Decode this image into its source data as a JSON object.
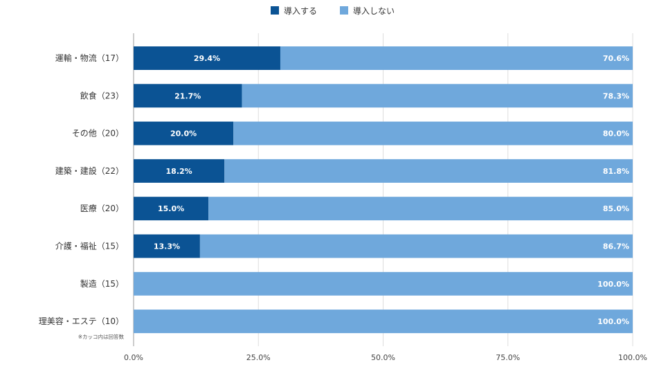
{
  "chart_data": {
    "type": "bar",
    "orientation": "horizontal",
    "stacked": true,
    "categories": [
      "運輸・物流（17）",
      "飲食（23）",
      "その他（20）",
      "建築・建設（22）",
      "医療（20）",
      "介護・福祉（15）",
      "製造（15）",
      "理美容・エステ（10）"
    ],
    "series": [
      {
        "name": "導入する",
        "color": "#0b5394",
        "values": [
          29.4,
          21.7,
          20.0,
          18.2,
          15.0,
          13.3,
          0,
          0
        ],
        "labels": [
          "29.4%",
          "21.7%",
          "20.0%",
          "18.2%",
          "15.0%",
          "13.3%",
          "",
          ""
        ]
      },
      {
        "name": "導入しない",
        "color": "#6fa8dc",
        "values": [
          70.6,
          78.3,
          80.0,
          81.8,
          85.0,
          86.7,
          100.0,
          100.0
        ],
        "labels": [
          "70.6%",
          "78.3%",
          "80.0%",
          "81.8%",
          "85.0%",
          "86.7%",
          "100.0%",
          "100.0%"
        ]
      }
    ],
    "xlim": [
      0,
      100
    ],
    "xticks": [
      0,
      25,
      50,
      75,
      100
    ],
    "xtick_labels": [
      "0.0%",
      "25.0%",
      "50.0%",
      "75.0%",
      "100.0%"
    ],
    "grid": true,
    "legend_position": "top-center",
    "note": "※カッコ内は回答数"
  }
}
